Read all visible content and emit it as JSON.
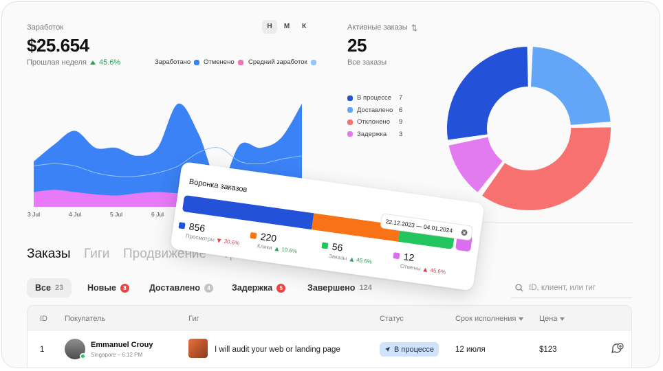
{
  "earnings": {
    "label": "Заработок",
    "amount": "$25.654",
    "period": "Прошлая неделя",
    "change": "45.6%",
    "tabs": [
      "Н",
      "М",
      "К"
    ],
    "chart": {
      "type": "area",
      "categories": [
        "3 Jul",
        null,
        "4 Jul",
        null,
        "5 Jul",
        null,
        "6 Jul",
        null,
        null,
        null,
        null,
        null,
        null,
        null
      ],
      "ylim": [
        0,
        100
      ],
      "series": [
        {
          "name": "Заработано",
          "color": "#3b82f6",
          "kind": "area",
          "values": [
            40,
            55,
            67,
            52,
            52,
            45,
            52,
            91,
            64,
            20,
            55,
            52,
            61,
            91
          ]
        },
        {
          "name": "Отменено",
          "color": "#e879f9",
          "kind": "area",
          "values": [
            13,
            15,
            13,
            11,
            10,
            12,
            13,
            12,
            12,
            12,
            12,
            12,
            12,
            12
          ]
        },
        {
          "name": "Средний заработок",
          "color": "#93c5fd",
          "kind": "line",
          "values": [
            36,
            38,
            36,
            30,
            27,
            27,
            30,
            36,
            48,
            52,
            40,
            38,
            42,
            45
          ]
        }
      ]
    }
  },
  "active_orders": {
    "label": "Активные заказы",
    "total": "25",
    "subtitle": "Все заказы",
    "chart": {
      "type": "donut",
      "items": [
        {
          "name": "В процессе",
          "color": "#2352d8",
          "value": 7
        },
        {
          "name": "Доставлено",
          "color": "#63a6f7",
          "value": 6
        },
        {
          "name": "Отклонено",
          "color": "#f87171",
          "value": 9
        },
        {
          "name": "Задержка",
          "color": "#e27af0",
          "value": 3
        }
      ]
    }
  },
  "funnel": {
    "title": "Воронка заказов",
    "date_range": "22.12.2023 — 04.01.2024",
    "stats": [
      {
        "value": 856,
        "label": "Просмотры",
        "change": "30.6%",
        "trend": "down",
        "color": "#e23b4a",
        "icon_color": "#2352d8"
      },
      {
        "value": 220,
        "label": "Клики",
        "change": "10.6%",
        "trend": "up",
        "color": "#22a55a",
        "icon_color": "#f97316"
      },
      {
        "value": 56,
        "label": "Заказы",
        "change": "45.6%",
        "trend": "up",
        "color": "#22a55a",
        "icon_color": "#22c55e"
      },
      {
        "value": 12,
        "label": "Отмены",
        "change": "45.6%",
        "trend": "up",
        "color": "#e23b4a",
        "icon_color": "#d96ef0"
      }
    ]
  },
  "tabs": [
    "Заказы",
    "Гиги",
    "Продвижение",
    "Транзакции"
  ],
  "filters": [
    {
      "label": "Все",
      "count": 23
    },
    {
      "label": "Новые",
      "count": 8
    },
    {
      "label": "Доставлено",
      "count": 4
    },
    {
      "label": "Задержка",
      "count": 5
    },
    {
      "label": "Завершено",
      "count": 124
    }
  ],
  "search_placeholder": "ID, клиент, или гиг",
  "table": {
    "columns": [
      "ID",
      "Покупатель",
      "Гиг",
      "Статус",
      "Срок исполнения",
      "Цена"
    ],
    "rows": [
      {
        "id": "1",
        "buyer": "Emmanuel Crouy",
        "location": "Singapore – 6:12 PM",
        "gig": "I will audit your web or landing page",
        "status": "В процессе",
        "deadline": "12 июля",
        "price": "$123"
      }
    ]
  }
}
